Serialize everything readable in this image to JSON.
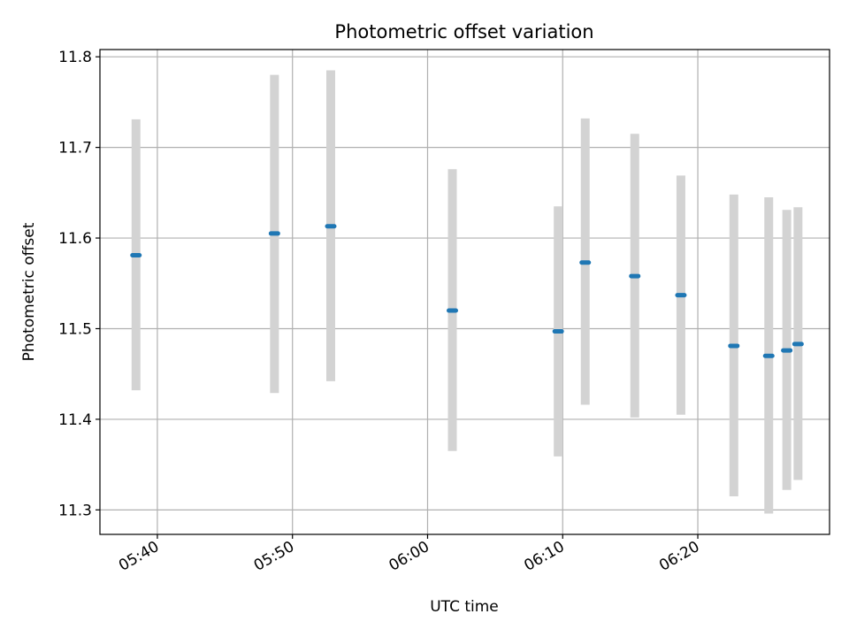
{
  "chart_data": {
    "type": "scatter",
    "title": "Photometric offset variation",
    "xlabel": "UTC time",
    "ylabel": "Photometric offset",
    "x_ticks": [
      "05:40",
      "05:50",
      "06:00",
      "06:10",
      "06:20"
    ],
    "y_ticks": [
      "11.3",
      "11.4",
      "11.5",
      "11.6",
      "11.7",
      "11.8"
    ],
    "xlim": [
      "05:35:45",
      "06:29:45"
    ],
    "ylim": [
      11.273,
      11.808
    ],
    "grid": true,
    "error_bar_color": "#d3d3d3",
    "point_color": "#1f77b4",
    "series": [
      {
        "points": [
          {
            "x": "05:38:25",
            "y": 11.581,
            "ylow": 11.432,
            "yhigh": 11.731
          },
          {
            "x": "05:48:40",
            "y": 11.605,
            "ylow": 11.429,
            "yhigh": 11.78
          },
          {
            "x": "05:52:50",
            "y": 11.613,
            "ylow": 11.442,
            "yhigh": 11.785
          },
          {
            "x": "06:01:50",
            "y": 11.52,
            "ylow": 11.365,
            "yhigh": 11.676
          },
          {
            "x": "06:09:40",
            "y": 11.497,
            "ylow": 11.359,
            "yhigh": 11.635
          },
          {
            "x": "06:11:40",
            "y": 11.573,
            "ylow": 11.416,
            "yhigh": 11.732
          },
          {
            "x": "06:15:20",
            "y": 11.558,
            "ylow": 11.402,
            "yhigh": 11.715
          },
          {
            "x": "06:18:45",
            "y": 11.537,
            "ylow": 11.405,
            "yhigh": 11.669
          },
          {
            "x": "06:22:40",
            "y": 11.481,
            "ylow": 11.315,
            "yhigh": 11.648
          },
          {
            "x": "06:25:15",
            "y": 11.47,
            "ylow": 11.296,
            "yhigh": 11.645
          },
          {
            "x": "06:26:35",
            "y": 11.476,
            "ylow": 11.322,
            "yhigh": 11.631
          },
          {
            "x": "06:27:25",
            "y": 11.483,
            "ylow": 11.333,
            "yhigh": 11.634
          }
        ]
      }
    ]
  }
}
